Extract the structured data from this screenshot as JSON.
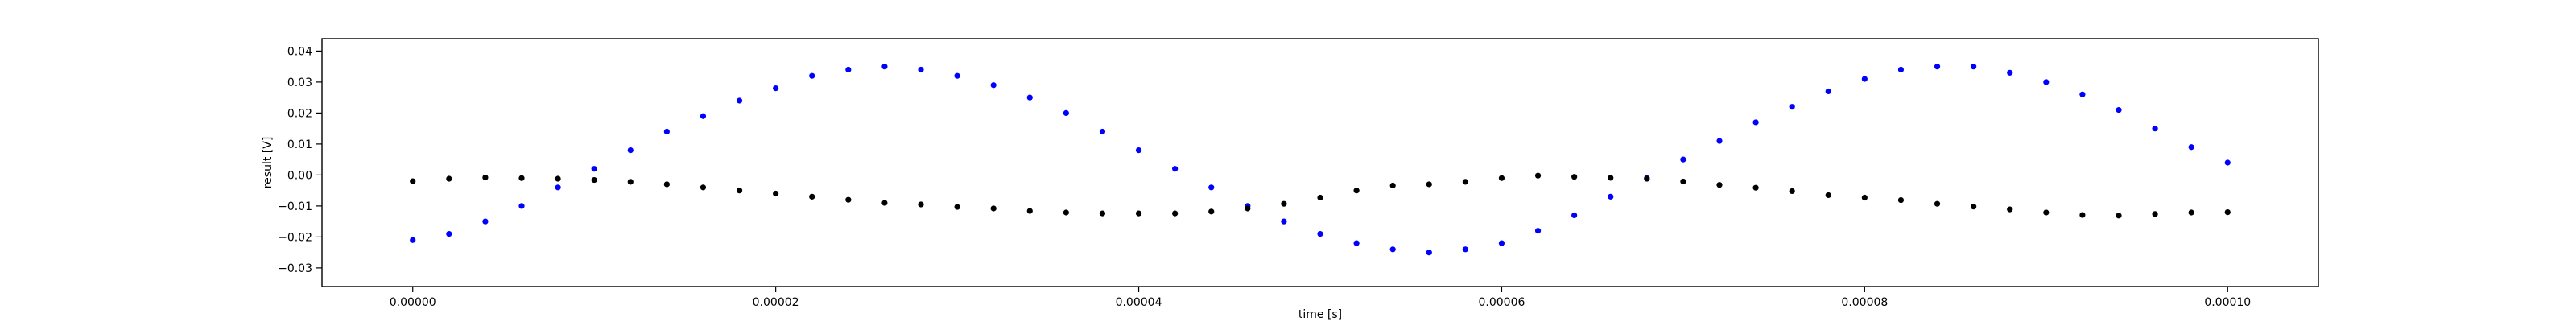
{
  "chart_data": {
    "type": "scatter",
    "title": "",
    "xlabel": "time [s]",
    "ylabel": "result [V]",
    "xlim": [
      -5e-06,
      0.000105
    ],
    "ylim": [
      -0.036,
      0.044
    ],
    "grid": false,
    "xticks": [
      0.0,
      2e-05,
      4e-05,
      6e-05,
      8e-05,
      0.0001
    ],
    "xtick_labels": [
      "0.00000",
      "0.00002",
      "0.00004",
      "0.00006",
      "0.00008",
      "0.00010"
    ],
    "yticks": [
      -0.03,
      -0.02,
      -0.01,
      0.0,
      0.01,
      0.02,
      0.03,
      0.04
    ],
    "ytick_labels": [
      "−0.03",
      "−0.02",
      "−0.01",
      "0.00",
      "0.01",
      "0.02",
      "0.03",
      "0.04"
    ],
    "series": [
      {
        "color": "#0000ff",
        "marker": "dot",
        "x": [
          0.0,
          2e-06,
          4e-06,
          6e-06,
          8e-06,
          1e-05,
          1.2e-05,
          1.4e-05,
          1.6e-05,
          1.8e-05,
          2e-05,
          2.2e-05,
          2.4e-05,
          2.6e-05,
          2.8e-05,
          3e-05,
          3.2e-05,
          3.4e-05,
          3.6e-05,
          3.8e-05,
          4e-05,
          4.2e-05,
          4.4e-05,
          4.6e-05,
          4.8e-05,
          5e-05,
          5.2e-05,
          5.4e-05,
          5.6e-05,
          5.8e-05,
          6e-05,
          6.2e-05,
          6.4e-05,
          6.6e-05,
          6.8e-05,
          7e-05,
          7.2e-05,
          7.4e-05,
          7.6e-05,
          7.8e-05,
          8e-05,
          8.2e-05,
          8.4e-05,
          8.6e-05,
          8.8e-05,
          9e-05,
          9.2e-05,
          9.4e-05,
          9.6e-05,
          9.8e-05,
          0.0001
        ],
        "y": [
          -0.021,
          -0.019,
          -0.015,
          -0.01,
          -0.004,
          0.002,
          0.008,
          0.014,
          0.019,
          0.024,
          0.028,
          0.032,
          0.034,
          0.035,
          0.034,
          0.032,
          0.029,
          0.025,
          0.02,
          0.014,
          0.008,
          0.002,
          -0.004,
          -0.01,
          -0.015,
          -0.019,
          -0.022,
          -0.024,
          -0.025,
          -0.024,
          -0.022,
          -0.018,
          -0.013,
          -0.007,
          -0.001,
          0.005,
          0.011,
          0.017,
          0.022,
          0.027,
          0.031,
          0.034,
          0.035,
          0.035,
          0.033,
          0.03,
          0.026,
          0.021,
          0.015,
          0.009,
          0.004
        ]
      },
      {
        "color": "#000000",
        "marker": "dot",
        "x": [
          0.0,
          2e-06,
          4e-06,
          6e-06,
          8e-06,
          1e-05,
          1.2e-05,
          1.4e-05,
          1.6e-05,
          1.8e-05,
          2e-05,
          2.2e-05,
          2.4e-05,
          2.6e-05,
          2.8e-05,
          3e-05,
          3.2e-05,
          3.4e-05,
          3.6e-05,
          3.8e-05,
          4e-05,
          4.2e-05,
          4.4e-05,
          4.6e-05,
          4.8e-05,
          5e-05,
          5.2e-05,
          5.4e-05,
          5.6e-05,
          5.8e-05,
          6e-05,
          6.2e-05,
          6.4e-05,
          6.6e-05,
          6.8e-05,
          7e-05,
          7.2e-05,
          7.4e-05,
          7.6e-05,
          7.8e-05,
          8e-05,
          8.2e-05,
          8.4e-05,
          8.6e-05,
          8.8e-05,
          9e-05,
          9.2e-05,
          9.4e-05,
          9.6e-05,
          9.8e-05,
          0.0001
        ],
        "y": [
          -0.002,
          -0.0012,
          -0.0008,
          -0.001,
          -0.0012,
          -0.0016,
          -0.0022,
          -0.003,
          -0.004,
          -0.005,
          -0.006,
          -0.007,
          -0.008,
          -0.009,
          -0.0095,
          -0.0103,
          -0.0108,
          -0.0116,
          -0.0121,
          -0.0124,
          -0.0124,
          -0.0124,
          -0.0118,
          -0.0108,
          -0.0093,
          -0.0073,
          -0.005,
          -0.0034,
          -0.003,
          -0.0022,
          -0.001,
          -0.0002,
          -0.0006,
          -0.0009,
          -0.0012,
          -0.0021,
          -0.0032,
          -0.0041,
          -0.0052,
          -0.0065,
          -0.0073,
          -0.0081,
          -0.0093,
          -0.0102,
          -0.0111,
          -0.0121,
          -0.0129,
          -0.0131,
          -0.0126,
          -0.0121,
          -0.012
        ]
      }
    ]
  }
}
